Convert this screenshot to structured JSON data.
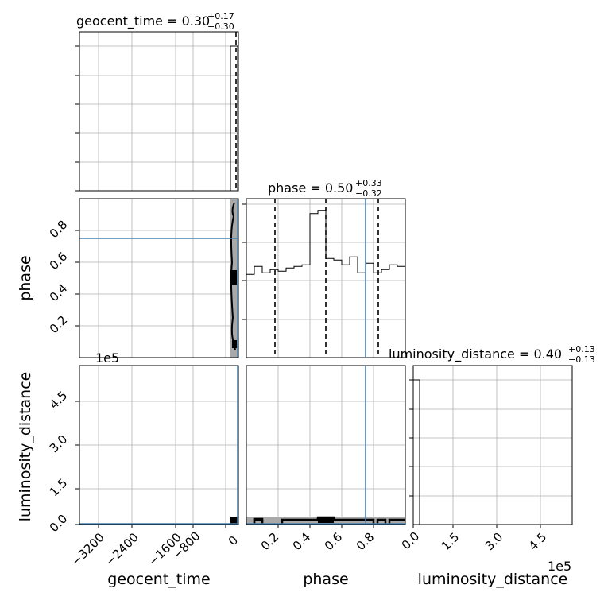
{
  "chart_data": {
    "type": "corner",
    "parameters": [
      "geocent_time",
      "phase",
      "luminosity_distance"
    ],
    "titles": {
      "geocent_time": {
        "name": "geocent_time",
        "median": "0.30",
        "plus": "+0.17",
        "minus": "−0.30"
      },
      "phase": {
        "name": "phase",
        "median": "0.50",
        "plus": "+0.33",
        "minus": "−0.32"
      },
      "luminosity_distance": {
        "name": "luminosity_distance",
        "median": "0.40",
        "plus": "+0.13",
        "minus": "−0.13"
      }
    },
    "axis_labels": {
      "geocent_time": "geocent_time",
      "phase": "phase",
      "luminosity_distance": "luminosity_distance"
    },
    "ranges": {
      "geocent_time": [
        -3700,
        0.47
      ],
      "phase": [
        0.0,
        1.0
      ],
      "luminosity_distance": [
        0,
        540000
      ]
    },
    "ticks": {
      "geocent_time": {
        "values": [
          -3200,
          -2400,
          -1600,
          -800,
          0
        ],
        "labels": [
          "−3200",
          "−2400",
          "−1600",
          "−800",
          "0"
        ]
      },
      "phase_x": {
        "values": [
          0.2,
          0.4,
          0.6,
          0.8
        ],
        "labels": [
          "0.2",
          "0.4",
          "0.6",
          "0.8"
        ]
      },
      "phase_y": {
        "values": [
          0.2,
          0.4,
          0.6,
          0.8
        ],
        "labels": [
          "0.2",
          "0.4",
          "0.6",
          "0.8"
        ]
      },
      "luminosity_distance": {
        "values": [
          0,
          150000,
          300000,
          450000
        ],
        "labels": [
          "0.0",
          "1.5",
          "3.0",
          "4.5"
        ]
      }
    },
    "offset_text": "1e5",
    "truths": {
      "geocent_time": 0.0,
      "phase": 0.75,
      "luminosity_distance": 0
    },
    "quantiles": {
      "phase": [
        0.18,
        0.5,
        0.83
      ],
      "geocent_time": [
        0.0,
        0.3,
        0.47
      ]
    },
    "hist_phase": {
      "bin_edges": [
        0.0,
        0.05,
        0.1,
        0.15,
        0.2,
        0.25,
        0.3,
        0.35,
        0.4,
        0.45,
        0.5,
        0.55,
        0.6,
        0.65,
        0.7,
        0.75,
        0.8,
        0.85,
        0.9,
        0.95,
        1.0
      ],
      "counts": [
        52,
        57,
        53,
        55,
        54,
        56,
        57,
        58,
        90,
        92,
        62,
        61,
        58,
        63,
        53,
        59,
        53,
        55,
        58,
        57
      ]
    },
    "grid": true
  }
}
